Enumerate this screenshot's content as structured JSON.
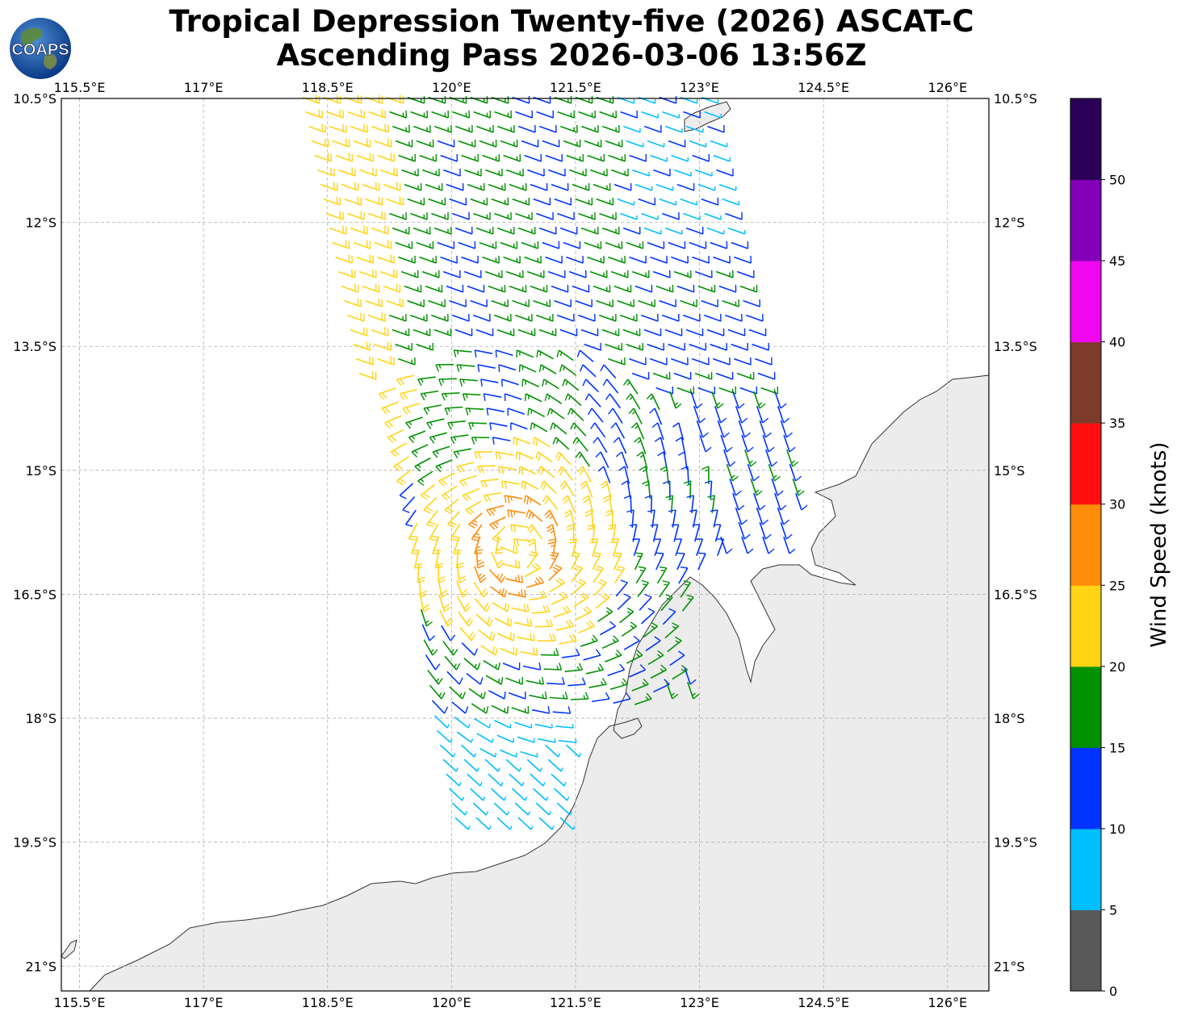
{
  "title": {
    "line1": "Tropical Depression Twenty-five (2026) ASCAT-C",
    "line2": "Ascending Pass 2026-03-06 13:56Z"
  },
  "logo": {
    "text": "COAPS"
  },
  "axes": {
    "lon_labels": [
      "115.5°E",
      "117°E",
      "118.5°E",
      "120°E",
      "121.5°E",
      "123°E",
      "124.5°E",
      "126°E"
    ],
    "lon_values": [
      115.5,
      117,
      118.5,
      120,
      121.5,
      123,
      124.5,
      126
    ],
    "lat_labels": [
      "10.5°S",
      "12°S",
      "13.5°S",
      "15°S",
      "16.5°S",
      "18°S",
      "19.5°S",
      "21°S"
    ],
    "lat_values": [
      -10.5,
      -12,
      -13.5,
      -15,
      -16.5,
      -18,
      -19.5,
      -21
    ],
    "lon_range": [
      115.28,
      126.5
    ],
    "lat_range": [
      -10.5,
      -21.3
    ]
  },
  "colorbar": {
    "label": "Wind Speed (knots)",
    "ticks": [
      "0",
      "5",
      "10",
      "15",
      "20",
      "25",
      "30",
      "35",
      "40",
      "45",
      "50"
    ],
    "colors": [
      "#595959",
      "#00bfff",
      "#0033ff",
      "#009100",
      "#ffd414",
      "#ff8c0a",
      "#ff0f0f",
      "#7d3b2a",
      "#f007f0",
      "#8400b8",
      "#2b0057"
    ]
  },
  "colors": {
    "coast": "#333333",
    "land": "#ececec",
    "grid": "#b0b0b0"
  }
}
